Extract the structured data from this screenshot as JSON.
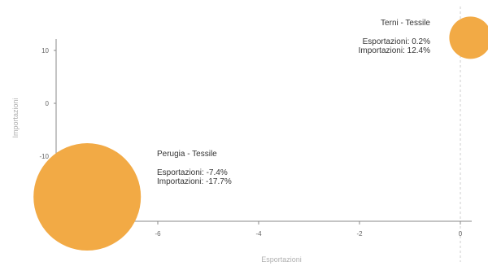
{
  "chart_data": {
    "type": "scatter",
    "title": "",
    "xlabel": "Esportazioni",
    "ylabel": "Importazioni",
    "x_ticks": [
      -6,
      -4,
      -2,
      0
    ],
    "y_ticks": [
      10,
      0,
      -10
    ],
    "reference_line_x": 0,
    "bubble_color": "#F2AA45",
    "points": [
      {
        "name": "Terni - Tessile",
        "x": 0.2,
        "y": 12.4,
        "size": "small",
        "label_lines": [
          "Esportazioni: 0.2%",
          "Importazioni: 12.4%"
        ]
      },
      {
        "name": "Perugia - Tessile",
        "x": -7.4,
        "y": -17.7,
        "size": "large",
        "label_lines": [
          "Esportazioni: -7.4%",
          "Importazioni: -17.7%"
        ]
      }
    ]
  }
}
